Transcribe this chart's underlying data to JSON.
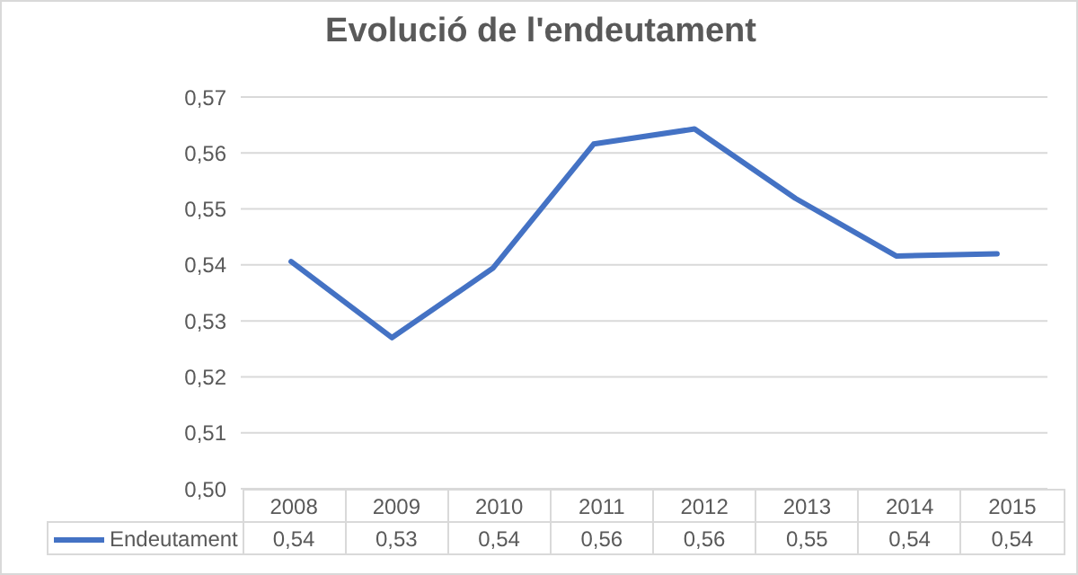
{
  "chart_data": {
    "type": "line",
    "title": "Evolució de l'endeutament",
    "categories": [
      "2008",
      "2009",
      "2010",
      "2011",
      "2012",
      "2013",
      "2014",
      "2015"
    ],
    "series": [
      {
        "name": "Endeutament",
        "color": "#4472c4",
        "values": [
          0.5406,
          0.527,
          0.5394,
          0.5616,
          0.5643,
          0.5519,
          0.5416,
          0.542
        ],
        "value_labels": [
          "0,54",
          "0,53",
          "0,54",
          "0,56",
          "0,56",
          "0,55",
          "0,54",
          "0,54"
        ]
      }
    ],
    "ylim": [
      0.5,
      0.57
    ],
    "yticks": [
      {
        "value": 0.5,
        "label": "0,50"
      },
      {
        "value": 0.51,
        "label": "0,51"
      },
      {
        "value": 0.52,
        "label": "0,52"
      },
      {
        "value": 0.53,
        "label": "0,53"
      },
      {
        "value": 0.54,
        "label": "0,54"
      },
      {
        "value": 0.55,
        "label": "0,55"
      },
      {
        "value": 0.56,
        "label": "0,56"
      },
      {
        "value": 0.57,
        "label": "0,57"
      }
    ],
    "grid": "y",
    "legend": "bottom",
    "marker": "none",
    "line_style": "solid"
  }
}
